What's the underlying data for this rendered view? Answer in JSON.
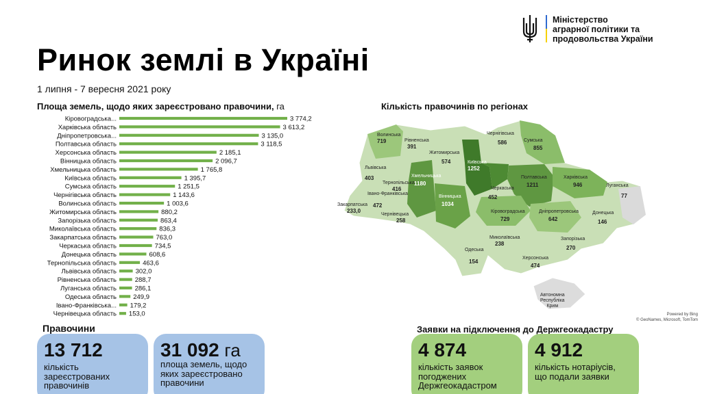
{
  "header": {
    "ministry_lines": [
      "Міністерство",
      "аграрної політики та",
      "продовольства України"
    ],
    "title": "Ринок землі в Україні",
    "subtitle": "1 липня - 7 вересня 2021 року"
  },
  "colors": {
    "bar": "#72b04a",
    "card_blue": "#a6c3e6",
    "card_green": "#a3cf7e"
  },
  "chart_data": [
    {
      "type": "bar",
      "orientation": "horizontal",
      "title": "Площа земель, щодо яких зареєстровано правочини,",
      "unit": "га",
      "categories": [
        "Кіровоградська...",
        "Харківська область",
        "Дніпропетровська...",
        "Полтавська область",
        "Херсонська область",
        "Вінницька область",
        "Хмельницька область",
        "Київська область",
        "Сумська область",
        "Чернігівська область",
        "Волинська область",
        "Житомирська область",
        "Запорізька область",
        "Миколаївська область",
        "Закарпатська область",
        "Черкаська область",
        "Донецька область",
        "Тернопільська область",
        "Львівська область",
        "Рівненська область",
        "Луганська область",
        "Одеська область",
        "Івано-Франківська...",
        "Чернівецька область"
      ],
      "values": [
        3774.2,
        3613.2,
        3135.0,
        3118.5,
        2185.1,
        2096.7,
        1765.8,
        1395.7,
        1251.5,
        1143.6,
        1003.6,
        880.2,
        863.4,
        836.3,
        763.0,
        734.5,
        608.6,
        463.6,
        302.0,
        288.7,
        286.1,
        249.9,
        179.2,
        153.0
      ],
      "value_labels": [
        "3 774,2",
        "3 613,2",
        "3 135,0",
        "3 118,5",
        "2 185,1",
        "2 096,7",
        "1 765,8",
        "1 395,7",
        "1 251,5",
        "1 143,6",
        "1 003,6",
        "880,2",
        "863,4",
        "836,3",
        "763,0",
        "734,5",
        "608,6",
        "463,6",
        "302,0",
        "288,7",
        "286,1",
        "249,9",
        "179,2",
        "153,0"
      ],
      "xlim": [
        0,
        3774.2
      ],
      "grid": false,
      "legend": "none"
    },
    {
      "type": "map",
      "title": "Кількість правочинів по регіонах",
      "regions": [
        {
          "name": "Волинська",
          "value": "719"
        },
        {
          "name": "Рівненська",
          "value": "391"
        },
        {
          "name": "Чернігівська",
          "value": "586"
        },
        {
          "name": "Сумська",
          "value": "855"
        },
        {
          "name": "Житомирська",
          "value": "574"
        },
        {
          "name": "Київська",
          "value": "1252"
        },
        {
          "name": "Львівська",
          "value": "403"
        },
        {
          "name": "Тернопільська",
          "value": "416"
        },
        {
          "name": "Хмельницька",
          "value": "1180"
        },
        {
          "name": "Полтавська",
          "value": "1211"
        },
        {
          "name": "Харківська",
          "value": "946"
        },
        {
          "name": "Луганська",
          "value": "77"
        },
        {
          "name": "Закарпатська",
          "value": "233,0"
        },
        {
          "name": "Івано-Франківська",
          "value": "472"
        },
        {
          "name": "Вінницька",
          "value": "1034"
        },
        {
          "name": "Черкаська",
          "value": "452"
        },
        {
          "name": "Чернівецька",
          "value": "258"
        },
        {
          "name": "Кіровоградська",
          "value": "729"
        },
        {
          "name": "Дніпропетровська",
          "value": "642"
        },
        {
          "name": "Донецька",
          "value": "146"
        },
        {
          "name": "Миколаївська",
          "value": "238"
        },
        {
          "name": "Запорізька",
          "value": "270"
        },
        {
          "name": "Одеська",
          "value": "154"
        },
        {
          "name": "Херсонська",
          "value": "474"
        }
      ],
      "crimea_label": [
        "Автономна",
        "Республіка",
        "Крим"
      ],
      "attribution": [
        "Powered by Bing",
        "© GeoNames, Microsoft, TomTom"
      ]
    }
  ],
  "transactions": {
    "heading": "Правочини",
    "count": {
      "value": "13 712",
      "desc": [
        "кількість",
        "зареєстрованих",
        "правочинів"
      ]
    },
    "area": {
      "value": "31 092",
      "unit": "га",
      "desc": [
        "площа земель, щодо",
        "яких зареєстровано",
        "правочини"
      ]
    }
  },
  "applications": {
    "heading": "Заявки на підключення до Держгеокадастру",
    "approved": {
      "value": "4 874",
      "desc": [
        "кількість заявок",
        "погоджених",
        "Держгеокадастром"
      ]
    },
    "notaries": {
      "value": "4 912",
      "desc": [
        "кількість нотаріусів,",
        "що подали заявки"
      ]
    }
  }
}
